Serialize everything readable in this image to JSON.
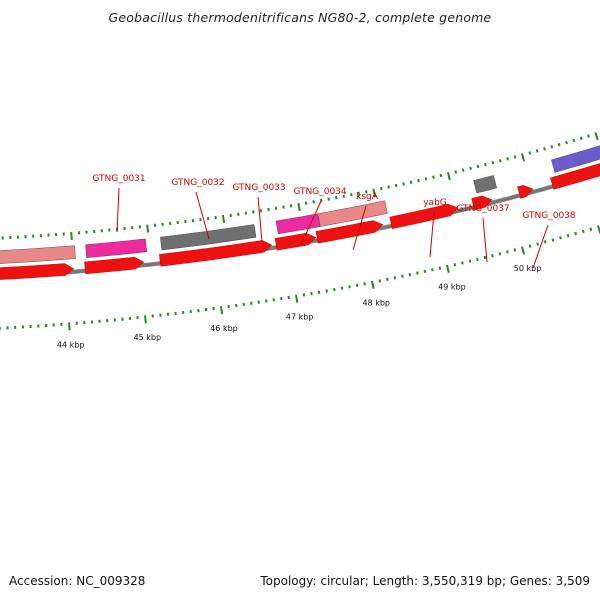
{
  "title": "Geobacillus thermodenitrificans NG80-2, complete genome",
  "footer": {
    "accession": "Accession: NC_009328",
    "summary": "Topology: circular; Length: 3,550,319 bp; Genes: 3,509"
  },
  "colors": {
    "backbone": "#777777",
    "cds_red": "#ee1111",
    "gene_pink": "#ee2aa0",
    "gene_salmon": "#e88888",
    "gene_gray": "#707070",
    "gene_purple": "#6b5ccc",
    "tick_green": "#228822",
    "label_red": "#cc0000"
  },
  "scale_labels": [
    "44 kbp",
    "45 kbp",
    "46 kbp",
    "47 kbp",
    "48 kbp",
    "49 kbp",
    "50 kbp"
  ],
  "gene_labels": [
    "GTNG_0031",
    "GTNG_0032",
    "GTNG_0033",
    "GTNG_0034",
    "ksgA",
    "yabG",
    "GTNG_0037",
    "GTNG_0038"
  ]
}
